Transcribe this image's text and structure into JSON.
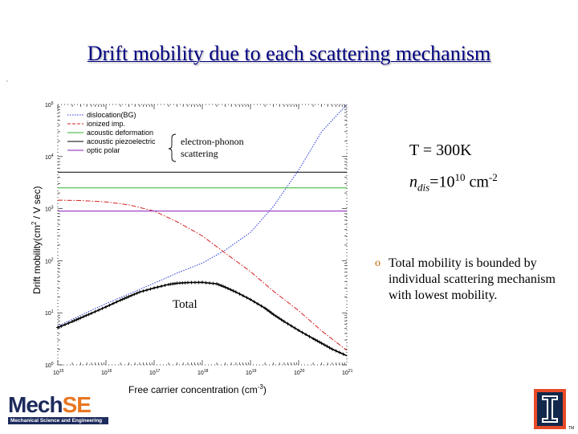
{
  "slide": {
    "title": "Drift mobility due to each scattering mechanism",
    "conditions": {
      "temperature": "T = 300K",
      "ndis_symbol": "n",
      "ndis_sub": "dis",
      "ndis_eq": "=10",
      "ndis_exp": "10",
      "ndis_unit": " cm",
      "ndis_unit_exp": "-2"
    },
    "bullet": {
      "marker": "o",
      "text": "Total mobility is bounded by individual scattering mechanism with lowest mobility."
    },
    "logo": {
      "mech": "Mech",
      "se": "SE",
      "subtitle": "Mechanical Science and Engineering"
    },
    "university_mark": {
      "letter": "I",
      "tm": "TM"
    }
  },
  "chart_data": {
    "type": "line",
    "xlabel": "Free carrier concentration (cm",
    "xlabel_exp": "-3",
    "xlabel_end": ")",
    "ylabel": "Drift mobility(cm",
    "ylabel_exp": "2",
    "ylabel_end": " / V sec)",
    "x_scale": "log",
    "y_scale": "log",
    "xlim": [
      1000000000000000.0,
      1e+21
    ],
    "ylim": [
      1,
      100000
    ],
    "x_ticks": [
      {
        "value": 1000000000000000.0,
        "base": "10",
        "exp": "15"
      },
      {
        "value": 1e+16,
        "base": "10",
        "exp": "16"
      },
      {
        "value": 1e+17,
        "base": "10",
        "exp": "17"
      },
      {
        "value": 1e+18,
        "base": "10",
        "exp": "18"
      },
      {
        "value": 1e+19,
        "base": "10",
        "exp": "19"
      },
      {
        "value": 1e+20,
        "base": "10",
        "exp": "20"
      },
      {
        "value": 1e+21,
        "base": "10",
        "exp": "21"
      }
    ],
    "y_ticks": [
      {
        "value": 1,
        "base": "10",
        "exp": "0"
      },
      {
        "value": 10,
        "base": "10",
        "exp": "1"
      },
      {
        "value": 100,
        "base": "10",
        "exp": "2"
      },
      {
        "value": 1000,
        "base": "10",
        "exp": "3"
      },
      {
        "value": 10000,
        "base": "10",
        "exp": "4"
      },
      {
        "value": 100000,
        "base": "10",
        "exp": "5"
      }
    ],
    "legend": {
      "placement": "top-left",
      "brace_label_line1": "electron-phonon",
      "brace_label_line2": "scattering"
    },
    "annotation_total": "Total",
    "series": [
      {
        "name": "dislocation(BG)",
        "color": "#2b3bd6",
        "style": "dotted",
        "x": [
          1000000000000000.0,
          3000000000000000.0,
          1e+16,
          3e+16,
          1e+17,
          3e+17,
          1e+18,
          3e+18,
          1e+19,
          3e+19,
          1e+20,
          3e+20,
          1e+21
        ],
        "y": [
          5.5,
          9,
          15,
          23,
          37,
          58,
          90,
          160,
          350,
          1100,
          5500,
          30000,
          100000
        ]
      },
      {
        "name": "ionized imp.",
        "color": "#d42020",
        "style": "dashed",
        "x": [
          1000000000000000.0,
          3000000000000000.0,
          1e+16,
          3e+16,
          1e+17,
          3e+17,
          1e+18,
          3e+18,
          1e+19,
          3e+19,
          1e+20,
          3e+20,
          1e+21
        ],
        "y": [
          1450,
          1430,
          1350,
          1180,
          900,
          560,
          300,
          140,
          62,
          26,
          11,
          4.5,
          1.9
        ]
      },
      {
        "name": "acoustic deformation",
        "color": "#2fb32f",
        "style": "solid",
        "x": [
          1000000000000000.0,
          1e+21
        ],
        "y": [
          2500,
          2500
        ]
      },
      {
        "name": "acoustic piezoelectric",
        "color": "#000000",
        "style": "solid",
        "x": [
          1000000000000000.0,
          1e+21
        ],
        "y": [
          5000,
          5000
        ]
      },
      {
        "name": "optic polar",
        "color": "#8a1bb8",
        "style": "solid",
        "x": [
          1000000000000000.0,
          1e+21
        ],
        "y": [
          900,
          900
        ]
      },
      {
        "name": "Total",
        "color": "#000000",
        "style": "markers",
        "x": [
          1000000000000000.0,
          2000000000000000.0,
          3000000000000000.0,
          5000000000000000.0,
          1e+16,
          2e+16,
          3e+16,
          5e+16,
          1e+17,
          2e+17,
          3e+17,
          5e+17,
          1e+18,
          2e+18,
          3e+18,
          5e+18,
          1e+19,
          2e+19,
          3e+19,
          5e+19,
          1e+20,
          2e+20,
          3e+20,
          5e+20,
          1e+21
        ],
        "y": [
          5.2,
          6.8,
          8,
          9.8,
          13,
          17.5,
          20.5,
          25,
          30,
          35,
          37,
          38,
          38.5,
          36,
          31,
          25,
          18,
          12.3,
          9.3,
          6.8,
          4.6,
          3.2,
          2.6,
          2.0,
          1.5
        ]
      }
    ]
  }
}
